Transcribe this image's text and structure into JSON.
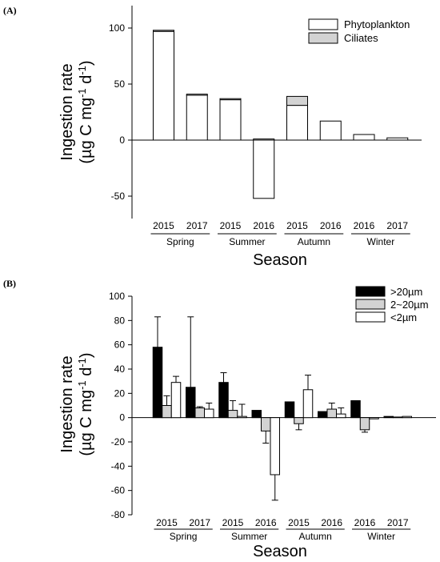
{
  "chart_data": [
    {
      "panel_label": "(A)",
      "type": "bar",
      "stacked": true,
      "ylim": [
        -70,
        120
      ],
      "yticks": [
        "-50",
        "0",
        "50",
        "100"
      ],
      "ylabel_line1": "Ingestion rate",
      "ylabel_line2": "(µg C mg",
      "ylabel_sup1": "-1",
      "ylabel_mid": " d",
      "ylabel_sup2": "-1",
      "ylabel_end": ")",
      "xlabel": "Season",
      "groups": [
        {
          "name": "Spring",
          "years": [
            "2015",
            "2017"
          ]
        },
        {
          "name": "Summer",
          "years": [
            "2015",
            "2016"
          ]
        },
        {
          "name": "Autumn",
          "years": [
            "2015",
            "2016"
          ]
        },
        {
          "name": "Winter",
          "years": [
            "2016",
            "2017"
          ]
        }
      ],
      "series": [
        {
          "name": "Phytoplankton",
          "color": "#ffffff",
          "values": [
            97,
            40,
            36,
            -52,
            31,
            17,
            5,
            2
          ]
        },
        {
          "name": "Ciliates",
          "color": "#d3d3d3",
          "values": [
            1,
            1,
            1,
            1,
            8,
            0,
            0,
            0
          ]
        }
      ],
      "legend_position": "top-right"
    },
    {
      "panel_label": "(B)",
      "type": "bar",
      "stacked": false,
      "ylim": [
        -80,
        100
      ],
      "yticks": [
        "-80",
        "-60",
        "-40",
        "-20",
        "0",
        "20",
        "40",
        "60",
        "80",
        "100"
      ],
      "ylabel_line1": "Ingestion rate",
      "ylabel_line2": "(µg C mg",
      "ylabel_sup1": "-1",
      "ylabel_mid": " d",
      "ylabel_sup2": "-1",
      "ylabel_end": ")",
      "xlabel": "Season",
      "groups": [
        {
          "name": "Spring",
          "years": [
            "2015",
            "2017"
          ]
        },
        {
          "name": "Summer",
          "years": [
            "2015",
            "2016"
          ]
        },
        {
          "name": "Autumn",
          "years": [
            "2015",
            "2016"
          ]
        },
        {
          "name": "Winter",
          "years": [
            "2016",
            "2017"
          ]
        }
      ],
      "series": [
        {
          "name": ">20µm",
          "color": "#000000",
          "values": [
            58,
            25,
            29,
            6,
            13,
            5,
            14,
            1
          ],
          "errors": [
            25,
            58,
            8,
            0,
            0,
            0,
            0,
            0
          ]
        },
        {
          "name": "2~20µm",
          "color": "#d3d3d3",
          "values": [
            10,
            8,
            6,
            -11,
            -5,
            7,
            -10,
            0.5
          ],
          "errors": [
            8,
            1,
            8,
            10,
            5,
            5,
            2,
            0
          ]
        },
        {
          "name": "<2µm",
          "color": "#ffffff",
          "values": [
            29,
            7,
            1,
            -47,
            23,
            3,
            -1,
            1
          ],
          "errors": [
            5,
            5,
            10,
            21,
            12,
            5,
            0,
            0
          ]
        }
      ],
      "legend_position": "top-right"
    }
  ]
}
